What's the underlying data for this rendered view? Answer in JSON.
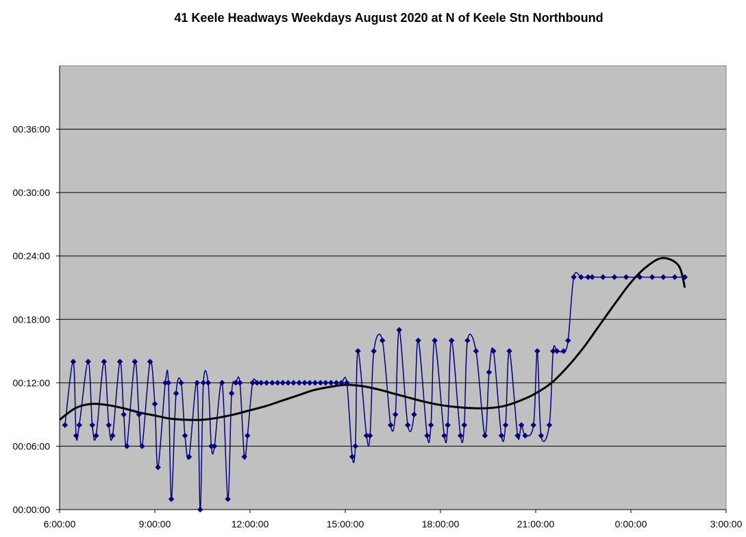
{
  "chart_data": {
    "type": "line",
    "title": "41 Keele Headways Weekdays August 2020 at N of Keele Stn Northbound",
    "xlabel": "",
    "ylabel": "",
    "x_unit": "hours",
    "y_unit": "minutes",
    "xlim": [
      6,
      27
    ],
    "ylim": [
      0,
      42
    ],
    "x_ticks": [
      {
        "value": 6,
        "label": "6:00:00"
      },
      {
        "value": 9,
        "label": "9:00:00"
      },
      {
        "value": 12,
        "label": "12:00:00"
      },
      {
        "value": 15,
        "label": "15:00:00"
      },
      {
        "value": 18,
        "label": "18:00:00"
      },
      {
        "value": 21,
        "label": "21:00:00"
      },
      {
        "value": 24,
        "label": "0:00:00"
      },
      {
        "value": 27,
        "label": "3:00:00"
      }
    ],
    "y_ticks": [
      {
        "value": 0,
        "label": "00:00:00"
      },
      {
        "value": 6,
        "label": "00:06:00"
      },
      {
        "value": 12,
        "label": "00:12:00"
      },
      {
        "value": 18,
        "label": "00:18:00"
      },
      {
        "value": 24,
        "label": "00:24:00"
      },
      {
        "value": 30,
        "label": "00:30:00"
      },
      {
        "value": 36,
        "label": "00:36:00"
      }
    ],
    "grid": "horizontal",
    "legend": "none",
    "colors": {
      "plot_background": "#C0C0C0",
      "series": "#000080",
      "trend": "#000000"
    },
    "series": [
      {
        "marker": "diamond",
        "x": [
          6.17,
          6.43,
          6.52,
          6.62,
          6.9,
          7.03,
          7.15,
          7.4,
          7.55,
          7.67,
          7.9,
          8.02,
          8.12,
          8.37,
          8.5,
          8.6,
          8.85,
          9.0,
          9.1,
          9.33,
          9.43,
          9.52,
          9.67,
          9.83,
          9.95,
          10.08,
          10.33,
          10.43,
          10.53,
          10.68,
          10.78,
          10.88,
          11.12,
          11.3,
          11.42,
          11.55,
          11.68,
          11.82,
          11.92,
          12.08,
          12.22,
          12.35,
          12.52,
          12.7,
          12.87,
          13.03,
          13.2,
          13.37,
          13.55,
          13.72,
          13.88,
          14.05,
          14.22,
          14.38,
          14.55,
          14.72,
          14.88,
          15.05,
          15.22,
          15.32,
          15.4,
          15.67,
          15.78,
          15.9,
          16.17,
          16.43,
          16.58,
          16.7,
          16.97,
          17.17,
          17.3,
          17.58,
          17.7,
          17.82,
          18.12,
          18.23,
          18.35,
          18.63,
          18.75,
          18.85,
          19.12,
          19.4,
          19.53,
          19.67,
          19.92,
          20.05,
          20.17,
          20.43,
          20.55,
          20.67,
          20.93,
          21.05,
          21.17,
          21.43,
          21.55,
          21.67,
          21.88,
          22.02,
          22.2,
          22.43,
          22.65,
          22.78,
          23.12,
          23.48,
          23.85,
          24.28,
          24.67,
          25.02,
          25.38,
          25.7
        ],
        "values": [
          8,
          14,
          7,
          8,
          14,
          8,
          7,
          14,
          8,
          7,
          14,
          9,
          6,
          14,
          9,
          6,
          14,
          10,
          4,
          12,
          12,
          1,
          11,
          12,
          7,
          5,
          12,
          0,
          12,
          12,
          6,
          6,
          12,
          1,
          11,
          12,
          12,
          5,
          7,
          12,
          12,
          12,
          12,
          12,
          12,
          12,
          12,
          12,
          12,
          12,
          12,
          12,
          12,
          12,
          12,
          12,
          12,
          12,
          5,
          6,
          15,
          7,
          7,
          15,
          16,
          8,
          9,
          17,
          8,
          9,
          16,
          7,
          8,
          16,
          7,
          8,
          16,
          7,
          8,
          16,
          15,
          7,
          13,
          15,
          7,
          8,
          15,
          7,
          8,
          7,
          8,
          15,
          7,
          8,
          15,
          15,
          15,
          16,
          22,
          22,
          22,
          22,
          22,
          22,
          22,
          22,
          22,
          22,
          22,
          22
        ]
      },
      {
        "type": "trend",
        "x": [
          6,
          6.5,
          7,
          7.5,
          8,
          8.5,
          9,
          9.5,
          10,
          10.5,
          11,
          11.5,
          12,
          12.5,
          13,
          13.5,
          14,
          14.5,
          15,
          15.5,
          16,
          16.5,
          17,
          17.5,
          18,
          18.5,
          19,
          19.5,
          20,
          20.5,
          21,
          21.5,
          22,
          22.5,
          23,
          23.5,
          24,
          24.5,
          25,
          25.5,
          25.7
        ],
        "values": [
          8.5,
          9.6,
          10.0,
          9.9,
          9.6,
          9.2,
          8.9,
          8.6,
          8.5,
          8.5,
          8.7,
          9.0,
          9.4,
          9.8,
          10.3,
          10.8,
          11.3,
          11.6,
          11.8,
          11.7,
          11.4,
          11.0,
          10.6,
          10.2,
          9.9,
          9.7,
          9.6,
          9.6,
          9.8,
          10.3,
          11.0,
          12.0,
          13.5,
          15.3,
          17.4,
          19.5,
          21.5,
          23.0,
          23.8,
          23.1,
          21.0
        ]
      }
    ]
  }
}
